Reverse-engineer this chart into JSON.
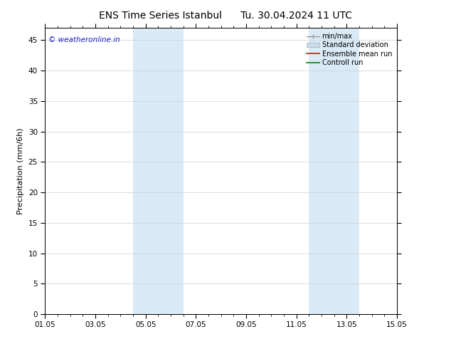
{
  "title_left": "ENS Time Series Istanbul",
  "title_right": "Tu. 30.04.2024 11 UTC",
  "ylabel": "Precipitation (mm/6h)",
  "xlim_min": 0,
  "xlim_max": 14,
  "ylim_min": 0,
  "ylim_max": 47,
  "yticks": [
    0,
    5,
    10,
    15,
    20,
    25,
    30,
    35,
    40,
    45
  ],
  "xtick_labels": [
    "01.05",
    "03.05",
    "05.05",
    "07.05",
    "09.05",
    "11.05",
    "13.05",
    "15.05"
  ],
  "xtick_positions": [
    0,
    2,
    4,
    6,
    8,
    10,
    12,
    14
  ],
  "shaded_regions": [
    {
      "xmin": 3.5,
      "xmax": 5.5,
      "color": "#daeaf7"
    },
    {
      "xmin": 10.5,
      "xmax": 12.5,
      "color": "#daeaf7"
    }
  ],
  "watermark_text": "© weatheronline.in",
  "watermark_color": "#2222cc",
  "watermark_fontsize": 7.5,
  "legend_items": [
    {
      "label": "min/max",
      "color": "#999999",
      "lw": 1.0,
      "type": "minmax"
    },
    {
      "label": "Standard deviation",
      "color": "#c8dced",
      "lw": 6,
      "type": "band"
    },
    {
      "label": "Ensemble mean run",
      "color": "#ff0000",
      "lw": 1.2,
      "type": "line"
    },
    {
      "label": "Controll run",
      "color": "#008800",
      "lw": 1.2,
      "type": "line"
    }
  ],
  "bg_color": "#ffffff",
  "plot_bg_color": "#ffffff",
  "tick_color": "#000000",
  "grid_color": "#d0d0d0",
  "title_fontsize": 10,
  "label_fontsize": 8,
  "tick_fontsize": 7.5,
  "legend_fontsize": 7
}
